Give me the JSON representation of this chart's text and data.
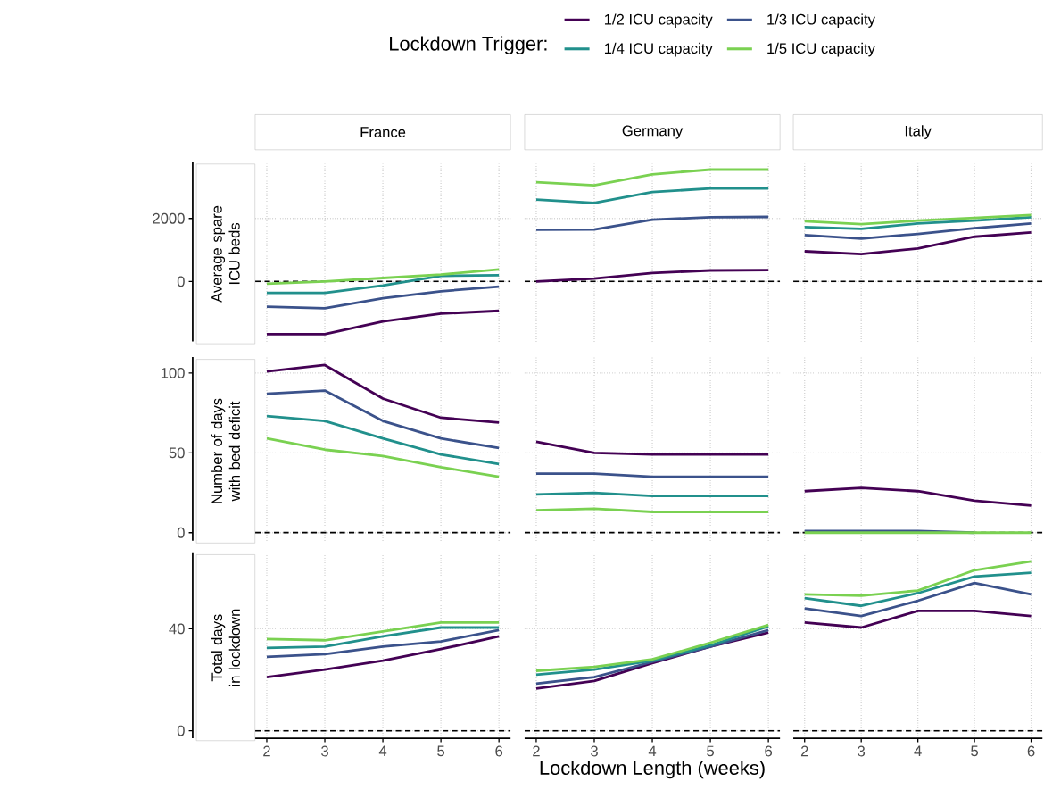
{
  "chart_data": [
    {
      "type": "line",
      "title": "France",
      "ylabel": "Average spare ICU beds",
      "legend": "top",
      "legend_title": "Lockdown Trigger:",
      "x": [
        2,
        3,
        4,
        5,
        6
      ],
      "xlim": [
        1.8,
        6.2
      ],
      "xticks": [
        2,
        3,
        4,
        5,
        6
      ],
      "ylim": [
        -1900,
        3800
      ],
      "yticks": [
        0,
        2000
      ],
      "grid": true,
      "tick_labels": "y",
      "ref_lines": [
        {
          "axis": "y",
          "value": 0,
          "color": "#000000",
          "line_style": "dashed"
        }
      ],
      "series": [
        {
          "name": "1/2 ICU capacity",
          "color": "#440154",
          "values": [
            -1670,
            -1670,
            -1270,
            -1020,
            -930
          ]
        },
        {
          "name": "1/3 ICU capacity",
          "color": "#3b528b",
          "values": [
            -800,
            -850,
            -530,
            -310,
            -160
          ]
        },
        {
          "name": "1/4 ICU capacity",
          "color": "#21908c",
          "values": [
            -360,
            -360,
            -130,
            180,
            200
          ]
        },
        {
          "name": "1/5 ICU capacity",
          "color": "#7ad151",
          "values": [
            -70,
            0,
            110,
            220,
            380
          ]
        }
      ]
    },
    {
      "type": "line",
      "title": "Germany",
      "x": [
        2,
        3,
        4,
        5,
        6
      ],
      "xlim": [
        1.8,
        6.2
      ],
      "xticks": [
        2,
        3,
        4,
        5,
        6
      ],
      "ylim": [
        -1900,
        3800
      ],
      "yticks": [
        0,
        2000
      ],
      "grid": true,
      "tick_labels": false,
      "ref_lines": [
        {
          "axis": "y",
          "value": 0,
          "color": "#000000",
          "line_style": "dashed"
        }
      ],
      "series": [
        {
          "color": "#440154",
          "values": [
            0,
            90,
            270,
            350,
            360
          ]
        },
        {
          "color": "#3b528b",
          "values": [
            1640,
            1650,
            1960,
            2040,
            2050
          ]
        },
        {
          "color": "#21908c",
          "values": [
            2600,
            2490,
            2840,
            2950,
            2950
          ]
        },
        {
          "color": "#7ad151",
          "values": [
            3150,
            3050,
            3400,
            3550,
            3550
          ]
        }
      ]
    },
    {
      "type": "line",
      "title": "Italy",
      "x": [
        2,
        3,
        4,
        5,
        6
      ],
      "xlim": [
        1.8,
        6.2
      ],
      "xticks": [
        2,
        3,
        4,
        5,
        6
      ],
      "ylim": [
        -1900,
        3800
      ],
      "yticks": [
        0,
        2000
      ],
      "grid": true,
      "tick_labels": false,
      "ref_lines": [
        {
          "axis": "y",
          "value": 0,
          "color": "#000000",
          "line_style": "dashed"
        }
      ],
      "series": [
        {
          "color": "#440154",
          "values": [
            960,
            870,
            1050,
            1420,
            1560
          ]
        },
        {
          "color": "#3b528b",
          "values": [
            1470,
            1360,
            1510,
            1690,
            1840
          ]
        },
        {
          "color": "#21908c",
          "values": [
            1730,
            1670,
            1840,
            1930,
            2040
          ]
        },
        {
          "color": "#7ad151",
          "values": [
            1910,
            1820,
            1930,
            2020,
            2110
          ]
        }
      ]
    },
    {
      "type": "line",
      "ylabel": "Number of days with bed deficit",
      "x": [
        2,
        3,
        4,
        5,
        6
      ],
      "xlim": [
        1.8,
        6.2
      ],
      "xticks": [
        2,
        3,
        4,
        5,
        6
      ],
      "ylim": [
        -5,
        110
      ],
      "yticks": [
        0,
        50,
        100
      ],
      "grid": true,
      "tick_labels": "y",
      "ref_lines": [
        {
          "axis": "y",
          "value": 0,
          "color": "#000000",
          "line_style": "dashed"
        }
      ],
      "series": [
        {
          "color": "#440154",
          "values": [
            101,
            105,
            84,
            72,
            69
          ]
        },
        {
          "color": "#3b528b",
          "values": [
            87,
            89,
            70,
            59,
            53
          ]
        },
        {
          "color": "#21908c",
          "values": [
            73,
            70,
            59,
            49,
            43
          ]
        },
        {
          "color": "#7ad151",
          "values": [
            59,
            52,
            48,
            41,
            35
          ]
        }
      ]
    },
    {
      "type": "line",
      "x": [
        2,
        3,
        4,
        5,
        6
      ],
      "xlim": [
        1.8,
        6.2
      ],
      "xticks": [
        2,
        3,
        4,
        5,
        6
      ],
      "ylim": [
        -5,
        110
      ],
      "yticks": [
        0,
        50,
        100
      ],
      "grid": true,
      "tick_labels": false,
      "ref_lines": [
        {
          "axis": "y",
          "value": 0,
          "color": "#000000",
          "line_style": "dashed"
        }
      ],
      "series": [
        {
          "color": "#440154",
          "values": [
            57,
            50,
            49,
            49,
            49
          ]
        },
        {
          "color": "#3b528b",
          "values": [
            37,
            37,
            35,
            35,
            35
          ]
        },
        {
          "color": "#21908c",
          "values": [
            24,
            25,
            23,
            23,
            23
          ]
        },
        {
          "color": "#7ad151",
          "values": [
            14,
            15,
            13,
            13,
            13
          ]
        }
      ]
    },
    {
      "type": "line",
      "x": [
        2,
        3,
        4,
        5,
        6
      ],
      "xlim": [
        1.8,
        6.2
      ],
      "xticks": [
        2,
        3,
        4,
        5,
        6
      ],
      "ylim": [
        -5,
        110
      ],
      "yticks": [
        0,
        50,
        100
      ],
      "grid": true,
      "tick_labels": false,
      "ref_lines": [
        {
          "axis": "y",
          "value": 0,
          "color": "#000000",
          "line_style": "dashed"
        }
      ],
      "series": [
        {
          "color": "#440154",
          "values": [
            26,
            28,
            26,
            20,
            17
          ]
        },
        {
          "color": "#3b528b",
          "values": [
            1,
            1,
            1,
            0,
            null
          ]
        },
        {
          "color": "#21908c",
          "values": [
            null,
            null,
            null,
            null,
            null
          ]
        },
        {
          "color": "#7ad151",
          "values": [
            0,
            0,
            0,
            0,
            0
          ]
        }
      ]
    },
    {
      "type": "line",
      "ylabel": "Total days in lockdown",
      "x": [
        2,
        3,
        4,
        5,
        6
      ],
      "xlim": [
        1.8,
        6.2
      ],
      "xticks": [
        2,
        3,
        4,
        5,
        6
      ],
      "ylim": [
        -3,
        70
      ],
      "yticks": [
        0,
        40
      ],
      "grid": true,
      "ref_lines": [
        {
          "axis": "y",
          "value": 0,
          "color": "#000000",
          "line_style": "dashed"
        }
      ],
      "series": [
        {
          "color": "#440154",
          "values": [
            21,
            24,
            27.5,
            32,
            37
          ]
        },
        {
          "color": "#3b528b",
          "values": [
            29,
            30,
            33,
            35,
            39.5
          ]
        },
        {
          "color": "#21908c",
          "values": [
            32.5,
            33,
            37,
            40.5,
            40.5
          ]
        },
        {
          "color": "#7ad151",
          "values": [
            36,
            35.5,
            39,
            42.5,
            42.5
          ]
        }
      ]
    },
    {
      "type": "line",
      "xlabel": "Lockdown Length (weeks)",
      "x": [
        2,
        3,
        4,
        5,
        6
      ],
      "xlim": [
        1.8,
        6.2
      ],
      "xticks": [
        2,
        3,
        4,
        5,
        6
      ],
      "ylim": [
        -3,
        70
      ],
      "yticks": [
        0,
        40
      ],
      "grid": true,
      "tick_labels": "x",
      "ref_lines": [
        {
          "axis": "y",
          "value": 0,
          "color": "#000000",
          "line_style": "dashed"
        }
      ],
      "series": [
        {
          "color": "#440154",
          "values": [
            16.5,
            19.5,
            26.5,
            33,
            38.5
          ]
        },
        {
          "color": "#3b528b",
          "values": [
            18.5,
            21,
            27,
            33,
            39.5
          ]
        },
        {
          "color": "#21908c",
          "values": [
            22,
            24,
            27.5,
            33.5,
            41
          ]
        },
        {
          "color": "#7ad151",
          "values": [
            23.5,
            25,
            28,
            34.5,
            41.5
          ]
        }
      ]
    },
    {
      "type": "line",
      "x": [
        2,
        3,
        4,
        5,
        6
      ],
      "xlim": [
        1.8,
        6.2
      ],
      "xticks": [
        2,
        3,
        4,
        5,
        6
      ],
      "ylim": [
        -3,
        70
      ],
      "yticks": [
        0,
        40
      ],
      "grid": true,
      "tick_labels": "x",
      "ref_lines": [
        {
          "axis": "y",
          "value": 0,
          "color": "#000000",
          "line_style": "dashed"
        }
      ],
      "series": [
        {
          "color": "#440154",
          "values": [
            42.5,
            40.5,
            47,
            47,
            45
          ]
        },
        {
          "color": "#3b528b",
          "values": [
            48,
            45,
            51,
            58,
            53.5
          ]
        },
        {
          "color": "#21908c",
          "values": [
            52,
            49,
            54,
            60.5,
            62
          ]
        },
        {
          "color": "#7ad151",
          "values": [
            53.5,
            53,
            55,
            63,
            66.5
          ]
        }
      ]
    }
  ]
}
